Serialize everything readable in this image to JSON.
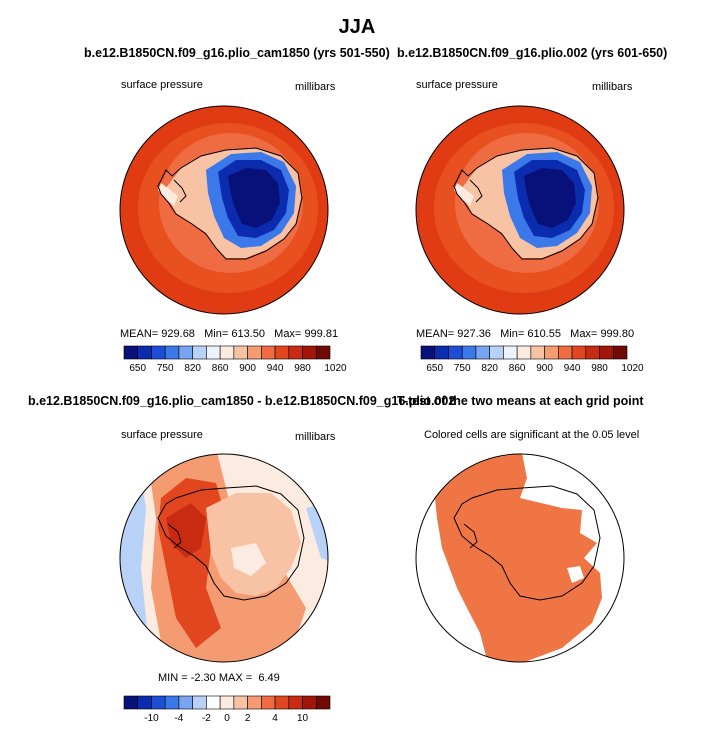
{
  "main_title": "JJA",
  "panels": {
    "p1": {
      "title": "b.e12.B1850CN.f09_g16.plio_cam1850 (yrs 501-550)",
      "left_label": "surface pressure",
      "right_label": "millibars",
      "stats": {
        "mean_label": "MEAN=",
        "mean": "929.68",
        "min_label": "Min=",
        "min": "613.50",
        "max_label": "Max=",
        "max": "999.81"
      }
    },
    "p2": {
      "title": "b.e12.B1850CN.f09_g16.plio.002 (yrs 601-650)",
      "left_label": "surface pressure",
      "right_label": "millibars",
      "stats": {
        "mean_label": "MEAN=",
        "mean": "927.36",
        "min_label": "Min=",
        "min": "610.55",
        "max_label": "Max=",
        "max": "999.80"
      }
    },
    "p3": {
      "title": "b.e12.B1850CN.f09_g16.plio_cam1850 - b.e12.B1850CN.f09_g16.plio.002",
      "left_label": "surface pressure",
      "right_label": "millibars",
      "stats": {
        "min_label": "MIN =",
        "min": "-2.30",
        "max_label": "MAX =",
        "max": "6.49"
      }
    },
    "p4": {
      "title": "T-test of the two means at each grid point",
      "subtitle": "Colored cells are significant at the 0.05 level"
    }
  },
  "colors": {
    "abs": [
      "#08107a",
      "#0c2cb0",
      "#1d4fd6",
      "#3b78ea",
      "#78a5f2",
      "#b8d1f7",
      "#eef3fb",
      "#fcebe0",
      "#f8c3a4",
      "#f49b72",
      "#ef6c43",
      "#e2461f",
      "#c92a12",
      "#a1150a",
      "#700a05"
    ],
    "diff": [
      "#08107a",
      "#0c2cb0",
      "#1d4fd6",
      "#3b78ea",
      "#78a5f2",
      "#b8d1f7",
      "#ffffff",
      "#fcebe0",
      "#f8c3a4",
      "#f49b72",
      "#ef6c43",
      "#e2461f",
      "#c92a12",
      "#a1150a",
      "#700a05"
    ],
    "ocean_high": "#e03b13",
    "ttest": "#f07545"
  },
  "chart_data": [
    {
      "type": "heatmap",
      "id": "p1",
      "title": "b.e12.B1850CN.f09_g16.plio_cam1850 (yrs 501-550)",
      "variable": "surface pressure",
      "units": "millibars",
      "colorbar_labels": [
        "650",
        "750",
        "820",
        "860",
        "900",
        "940",
        "980",
        "1020"
      ],
      "mean": 929.68,
      "min": 613.5,
      "max": 999.81
    },
    {
      "type": "heatmap",
      "id": "p2",
      "title": "b.e12.B1850CN.f09_g16.plio.002 (yrs 601-650)",
      "variable": "surface pressure",
      "units": "millibars",
      "colorbar_labels": [
        "650",
        "750",
        "820",
        "860",
        "900",
        "940",
        "980",
        "1020"
      ],
      "mean": 927.36,
      "min": 610.55,
      "max": 999.8
    },
    {
      "type": "heatmap",
      "id": "p3",
      "title": "b.e12.B1850CN.f09_g16.plio_cam1850 - b.e12.B1850CN.f09_g16.plio.002",
      "variable": "surface pressure",
      "units": "millibars",
      "colorbar_labels": [
        "-10",
        "-4",
        "-2",
        "0",
        "2",
        "4",
        "10"
      ],
      "min": -2.3,
      "max": 6.49
    },
    {
      "type": "heatmap",
      "id": "p4",
      "title": "T-test of the two means at each grid point",
      "annotation": "Colored cells are significant at the 0.05 level",
      "significance_level": 0.05
    }
  ]
}
